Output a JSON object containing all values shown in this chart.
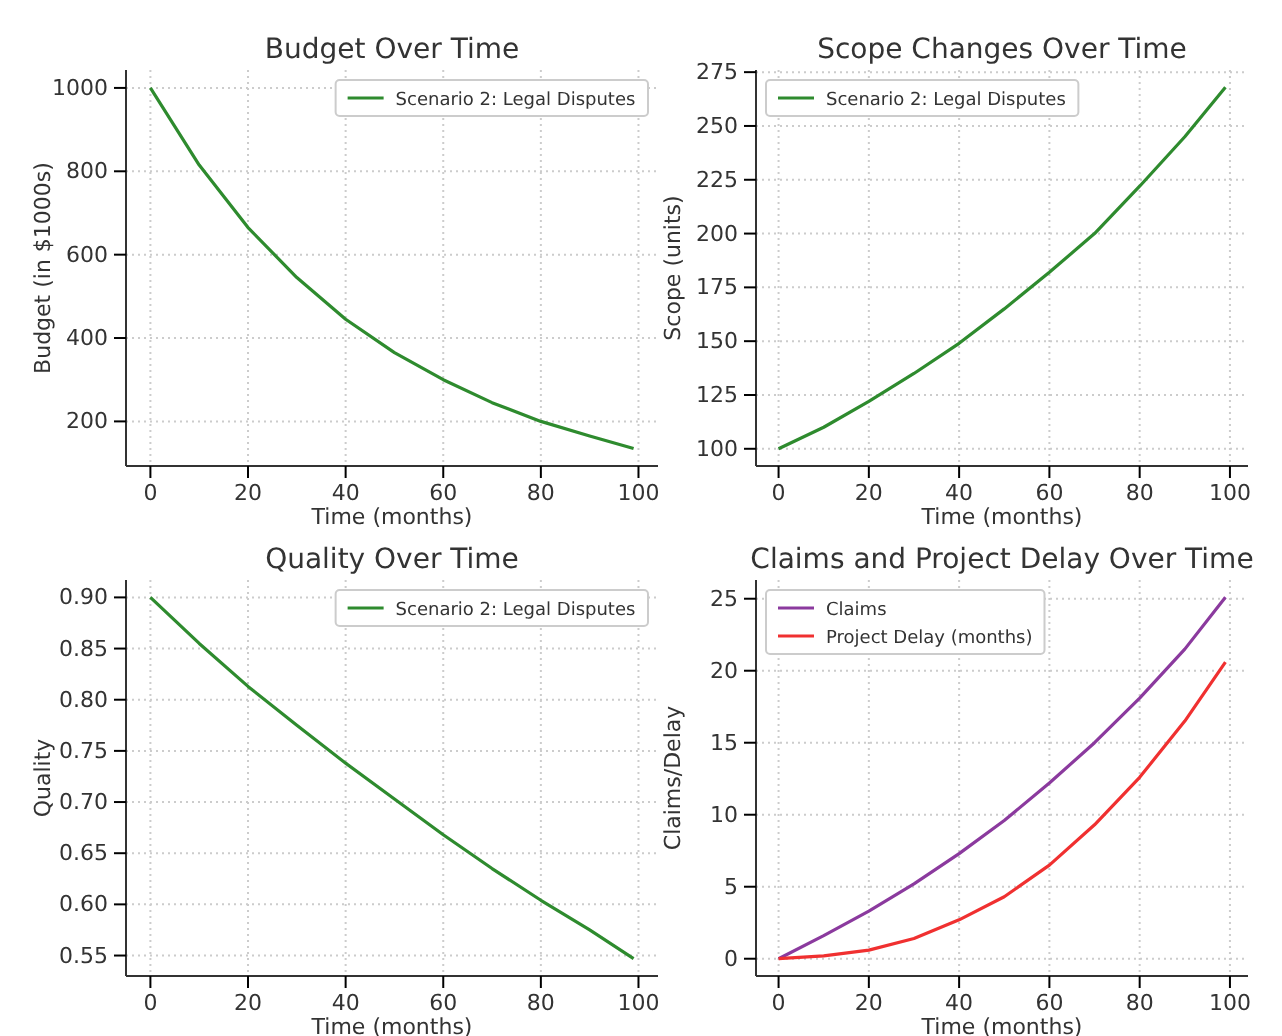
{
  "chart_data": [
    {
      "type": "line",
      "title": "Budget Over Time",
      "xlabel": "Time (months)",
      "ylabel": "Budget (in $1000s)",
      "x": [
        0,
        10,
        20,
        30,
        40,
        50,
        60,
        70,
        80,
        90,
        99
      ],
      "series": [
        {
          "name": "Scenario 2: Legal Disputes",
          "color": "#2e8b2e",
          "values": [
            1000,
            815,
            665,
            545,
            445,
            365,
            300,
            245,
            200,
            165,
            135
          ]
        }
      ],
      "xlim": [
        -5,
        104
      ],
      "xticks": [
        0,
        20,
        40,
        60,
        80,
        100
      ],
      "ylim": [
        93,
        1043
      ],
      "yticks": [
        200,
        400,
        600,
        800,
        1000
      ],
      "grid": true,
      "legend": "top right",
      "marker": "none",
      "line_style": "solid"
    },
    {
      "type": "line",
      "title": "Scope Changes Over Time",
      "xlabel": "Time (months)",
      "ylabel": "Scope (units)",
      "x": [
        0,
        10,
        20,
        30,
        40,
        50,
        60,
        70,
        80,
        90,
        99
      ],
      "series": [
        {
          "name": "Scenario 2: Legal Disputes",
          "color": "#2e8b2e",
          "values": [
            100,
            110,
            122,
            135,
            149,
            165,
            182,
            200,
            222,
            245,
            268
          ]
        }
      ],
      "xlim": [
        -5,
        104
      ],
      "xticks": [
        0,
        20,
        40,
        60,
        80,
        100
      ],
      "ylim": [
        92,
        276
      ],
      "yticks": [
        100,
        125,
        150,
        175,
        200,
        225,
        250,
        275
      ],
      "grid": true,
      "legend": "top left",
      "marker": "none",
      "line_style": "solid"
    },
    {
      "type": "line",
      "title": "Quality Over Time",
      "xlabel": "Time (months)",
      "ylabel": "Quality",
      "x": [
        0,
        10,
        20,
        30,
        40,
        50,
        60,
        70,
        80,
        90,
        99
      ],
      "series": [
        {
          "name": "Scenario 2: Legal Disputes",
          "color": "#2e8b2e",
          "values": [
            0.9,
            0.855,
            0.813,
            0.775,
            0.738,
            0.703,
            0.668,
            0.635,
            0.604,
            0.575,
            0.547
          ]
        }
      ],
      "xlim": [
        -5,
        104
      ],
      "xticks": [
        0,
        20,
        40,
        60,
        80,
        100
      ],
      "ylim": [
        0.53,
        0.917
      ],
      "yticks": [
        {
          "value": 0.55,
          "label": "0.55"
        },
        {
          "value": 0.6,
          "label": "0.60"
        },
        {
          "value": 0.65,
          "label": "0.65"
        },
        {
          "value": 0.7,
          "label": "0.70"
        },
        {
          "value": 0.75,
          "label": "0.75"
        },
        {
          "value": 0.8,
          "label": "0.80"
        },
        {
          "value": 0.85,
          "label": "0.85"
        },
        {
          "value": 0.9,
          "label": "0.90"
        }
      ],
      "grid": true,
      "legend": "top right",
      "marker": "none",
      "line_style": "solid"
    },
    {
      "type": "line",
      "title": "Claims and Project Delay Over Time",
      "xlabel": "Time (months)",
      "ylabel": "Claims/Delay",
      "x": [
        0,
        10,
        20,
        30,
        40,
        50,
        60,
        70,
        80,
        90,
        99
      ],
      "series": [
        {
          "name": "Claims",
          "color": "#8b3a9e",
          "values": [
            0,
            1.6,
            3.3,
            5.2,
            7.3,
            9.6,
            12.2,
            15,
            18.1,
            21.5,
            25.1
          ]
        },
        {
          "name": "Project Delay (months)",
          "color": "#f03030",
          "values": [
            0,
            0.2,
            0.6,
            1.4,
            2.7,
            4.3,
            6.5,
            9.3,
            12.6,
            16.5,
            20.6
          ]
        }
      ],
      "xlim": [
        -5,
        104
      ],
      "xticks": [
        0,
        20,
        40,
        60,
        80,
        100
      ],
      "ylim": [
        -1.2,
        26.3
      ],
      "yticks": [
        0,
        5,
        10,
        15,
        20,
        25
      ],
      "grid": true,
      "legend": "top left",
      "marker": "none",
      "line_style": "solid"
    }
  ]
}
